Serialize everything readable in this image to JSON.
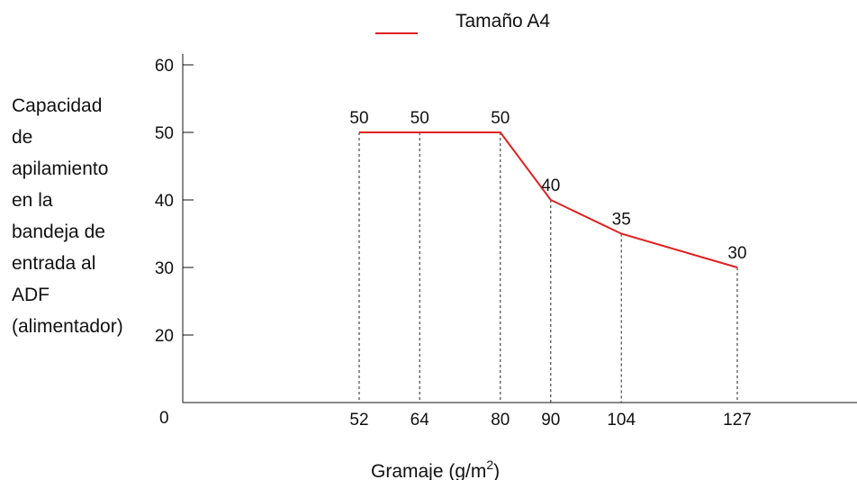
{
  "chart_data": {
    "type": "line",
    "legend": {
      "label": "Tamaño A4",
      "placement": "top-center"
    },
    "xlabel": "Gramaje (g/m",
    "xlabel_sup": "2",
    "xlabel_end": ")",
    "ylabel_lines": [
      "Capacidad",
      "de",
      "apilamiento",
      "en la",
      "bandeja de",
      "entrada al",
      "ADF",
      "(alimentador)"
    ],
    "origin_label": "0",
    "y_ticks": [
      20,
      30,
      40,
      50,
      60
    ],
    "ylim": [
      10,
      60
    ],
    "xlim": [
      22,
      152
    ],
    "x": [
      52,
      64,
      80,
      90,
      104,
      127
    ],
    "x_tick_labels": [
      "52",
      "64",
      "80",
      "90",
      "104",
      "127"
    ],
    "values": [
      50,
      50,
      50,
      40,
      35,
      30
    ],
    "data_labels": [
      "50",
      "50",
      "50",
      "40",
      "35",
      "30"
    ],
    "line_color": "#e02020",
    "grid": false,
    "guide_lines": "dashed vertical from each point to x-axis"
  }
}
